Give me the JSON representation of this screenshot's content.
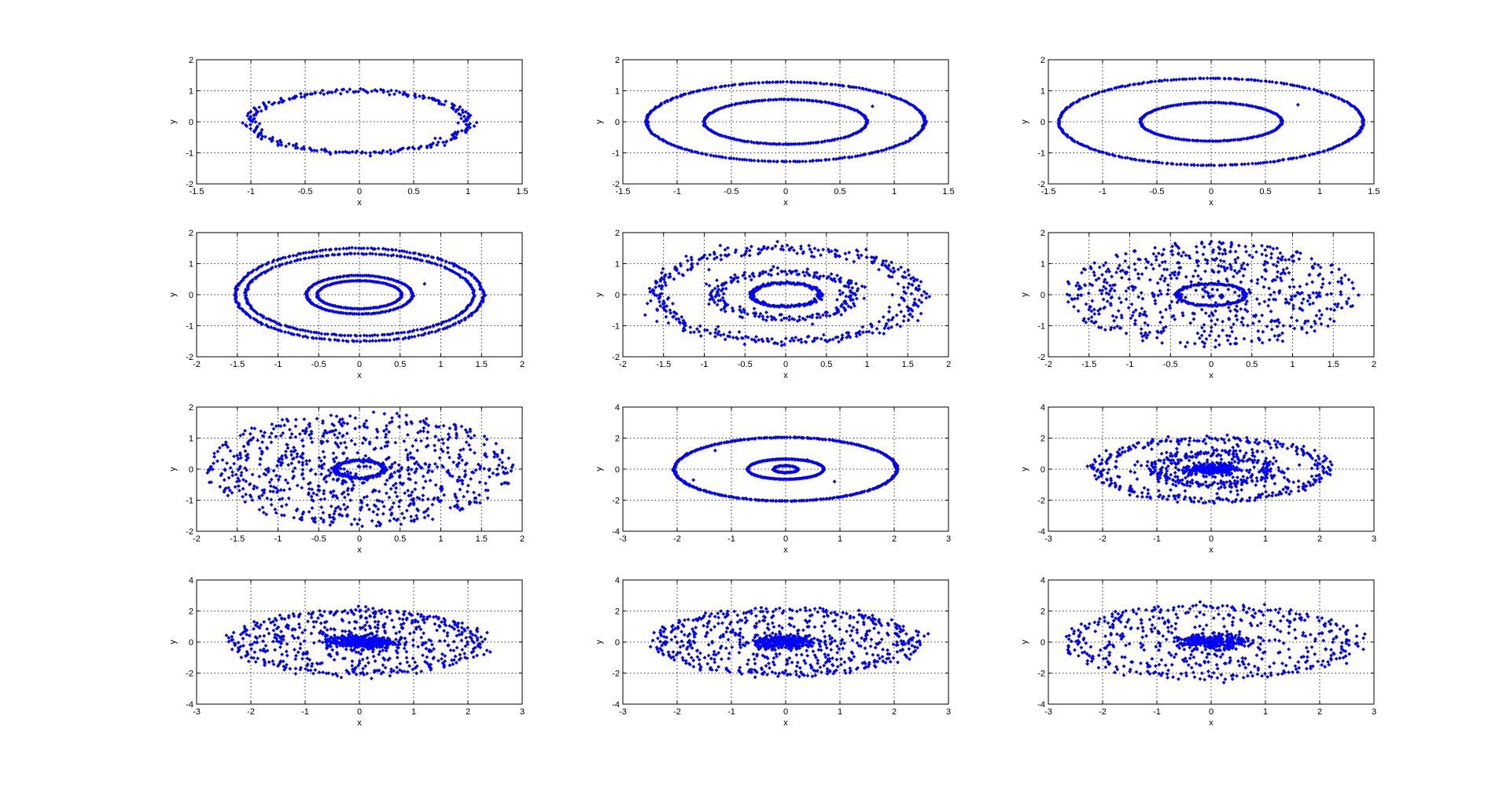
{
  "chart_data": [
    {
      "type": "scatter",
      "xlabel": "x",
      "ylabel": "y",
      "xlim": [
        -1.5,
        1.5
      ],
      "ylim": [
        -2,
        2
      ],
      "xticks": [
        "-1.5",
        "-1",
        "-0.5",
        "0",
        "0.5",
        "1",
        "1.5"
      ],
      "yticks": [
        "-2",
        "-1",
        "0",
        "1",
        "2"
      ],
      "grid": true,
      "series": [
        {
          "color": "#0000ff",
          "rings": [
            [
              1.0,
              1.0,
              260,
              0.035
            ]
          ],
          "core": 0,
          "scatter": 0,
          "outliers": []
        }
      ]
    },
    {
      "type": "scatter",
      "xlabel": "x",
      "ylabel": "y",
      "xlim": [
        -1.5,
        1.5
      ],
      "ylim": [
        -2,
        2
      ],
      "xticks": [
        "-1.5",
        "-1",
        "-0.5",
        "0",
        "0.5",
        "1",
        "1.5"
      ],
      "yticks": [
        "-2",
        "-1",
        "0",
        "1",
        "2"
      ],
      "grid": true,
      "series": [
        {
          "color": "#0000ff",
          "rings": [
            [
              1.28,
              1.28,
              320,
              0.004
            ],
            [
              0.75,
              0.72,
              260,
              0.006
            ]
          ],
          "core": 0,
          "scatter": 0,
          "outliers": [
            [
              0.8,
              0.5
            ]
          ]
        }
      ]
    },
    {
      "type": "scatter",
      "xlabel": "x",
      "ylabel": "y",
      "xlim": [
        -1.5,
        1.5
      ],
      "ylim": [
        -2,
        2
      ],
      "xticks": [
        "-1.5",
        "-1",
        "-0.5",
        "0",
        "0.5",
        "1",
        "1.5"
      ],
      "yticks": [
        "-2",
        "-1",
        "0",
        "1",
        "2"
      ],
      "grid": true,
      "series": [
        {
          "color": "#0000ff",
          "rings": [
            [
              1.4,
              1.4,
              340,
              0.004
            ],
            [
              0.65,
              0.62,
              240,
              0.006
            ]
          ],
          "core": 0,
          "scatter": 0,
          "outliers": [
            [
              0.8,
              0.55
            ]
          ]
        }
      ]
    },
    {
      "type": "scatter",
      "xlabel": "x",
      "ylabel": "y",
      "xlim": [
        -2,
        2
      ],
      "ylim": [
        -2,
        2
      ],
      "xticks": [
        "-2",
        "-1.5",
        "-1",
        "-0.5",
        "0",
        "0.5",
        "1",
        "1.5",
        "2"
      ],
      "yticks": [
        "-2",
        "-1",
        "0",
        "1",
        "2"
      ],
      "grid": true,
      "series": [
        {
          "color": "#0000ff",
          "rings": [
            [
              1.52,
              1.5,
              260,
              0.006
            ],
            [
              1.4,
              1.32,
              240,
              0.006
            ],
            [
              0.65,
              0.62,
              180,
              0.008
            ],
            [
              0.52,
              0.45,
              160,
              0.008
            ]
          ],
          "core": 0,
          "scatter": 0,
          "outliers": [
            [
              0.8,
              0.35
            ]
          ]
        }
      ]
    },
    {
      "type": "scatter",
      "xlabel": "x",
      "ylabel": "y",
      "xlim": [
        -2,
        2
      ],
      "ylim": [
        -2,
        2
      ],
      "xticks": [
        "-2",
        "-1.5",
        "-1",
        "-0.5",
        "0",
        "0.5",
        "1",
        "1.5",
        "2"
      ],
      "yticks": [
        "-2",
        "-1",
        "0",
        "1",
        "2"
      ],
      "grid": true,
      "series": [
        {
          "color": "#0000ff",
          "rings": [
            [
              1.6,
              1.5,
              380,
              0.06
            ],
            [
              0.85,
              0.75,
              220,
              0.09
            ],
            [
              0.42,
              0.38,
              200,
              0.05
            ]
          ],
          "core": 0,
          "scatter": 0,
          "outliers": []
        }
      ]
    },
    {
      "type": "scatter",
      "xlabel": "x",
      "ylabel": "y",
      "xlim": [
        -2,
        2
      ],
      "ylim": [
        -2,
        2
      ],
      "xticks": [
        "-2",
        "-1.5",
        "-1",
        "-0.5",
        "0",
        "0.5",
        "1",
        "1.5",
        "2"
      ],
      "yticks": [
        "-2",
        "-1",
        "0",
        "1",
        "2"
      ],
      "grid": true,
      "series": [
        {
          "color": "#0000ff",
          "rings": [
            [
              0.42,
              0.35,
              150,
              0.03
            ]
          ],
          "core": 0,
          "scatter": 650,
          "scatter_ext": [
            1.82,
            1.72
          ],
          "outliers": []
        }
      ]
    },
    {
      "type": "scatter",
      "xlabel": "x",
      "ylabel": "y",
      "xlim": [
        -2,
        2
      ],
      "ylim": [
        -2,
        2
      ],
      "xticks": [
        "-2",
        "-1.5",
        "-1",
        "-0.5",
        "0",
        "0.5",
        "1",
        "1.5",
        "2"
      ],
      "yticks": [
        "-2",
        "-1",
        "0",
        "1",
        "2"
      ],
      "grid": true,
      "series": [
        {
          "color": "#0000ff",
          "rings": [
            [
              0.3,
              0.28,
              150,
              0.05
            ]
          ],
          "core": 0,
          "scatter": 820,
          "scatter_ext": [
            1.9,
            1.85
          ],
          "outliers": []
        }
      ]
    },
    {
      "type": "scatter",
      "xlabel": "x",
      "ylabel": "y",
      "xlim": [
        -3,
        3
      ],
      "ylim": [
        -4,
        4
      ],
      "xticks": [
        "-3",
        "-2",
        "-1",
        "0",
        "1",
        "2",
        "3"
      ],
      "yticks": [
        "-4",
        "-2",
        "0",
        "2",
        "4"
      ],
      "grid": true,
      "series": [
        {
          "color": "#0000ff",
          "rings": [
            [
              2.05,
              2.05,
              420,
              0.005
            ],
            [
              0.7,
              0.65,
              200,
              0.008
            ],
            [
              0.22,
              0.22,
              70,
              0.05
            ]
          ],
          "core": 0,
          "scatter": 0,
          "outliers": [
            [
              -1.3,
              1.2
            ],
            [
              -1.7,
              -0.7
            ],
            [
              0.4,
              0.6
            ],
            [
              0.9,
              -0.8
            ]
          ]
        }
      ]
    },
    {
      "type": "scatter",
      "xlabel": "x",
      "ylabel": "y",
      "xlim": [
        -3,
        3
      ],
      "ylim": [
        -4,
        4
      ],
      "xticks": [
        "-3",
        "-2",
        "-1",
        "0",
        "1",
        "2",
        "3"
      ],
      "yticks": [
        "-4",
        "-2",
        "0",
        "2",
        "4"
      ],
      "grid": true,
      "series": [
        {
          "color": "#0000ff",
          "rings": [
            [
              2.1,
              2.0,
              260,
              0.05
            ],
            [
              1.0,
              1.0,
              200,
              0.12
            ]
          ],
          "core": 260,
          "core_ext": [
            0.5,
            0.5
          ],
          "scatter": 140,
          "scatter_ext": [
            2.0,
            1.9
          ],
          "outliers": []
        }
      ]
    },
    {
      "type": "scatter",
      "xlabel": "x",
      "ylabel": "y",
      "xlim": [
        -3,
        3
      ],
      "ylim": [
        -4,
        4
      ],
      "xticks": [
        "-3",
        "-2",
        "-1",
        "0",
        "1",
        "2",
        "3"
      ],
      "yticks": [
        "-4",
        "-2",
        "0",
        "2",
        "4"
      ],
      "grid": true,
      "series": [
        {
          "color": "#0000ff",
          "rings": [
            [
              2.25,
              2.05,
              220,
              0.05
            ]
          ],
          "core": 380,
          "core_ext": [
            0.6,
            0.55
          ],
          "scatter": 350,
          "scatter_ext": [
            2.15,
            2.0
          ],
          "outliers": []
        }
      ]
    },
    {
      "type": "scatter",
      "xlabel": "x",
      "ylabel": "y",
      "xlim": [
        -3,
        3
      ],
      "ylim": [
        -4,
        4
      ],
      "xticks": [
        "-3",
        "-2",
        "-1",
        "0",
        "1",
        "2",
        "3"
      ],
      "yticks": [
        "-4",
        "-2",
        "0",
        "2",
        "4"
      ],
      "grid": true,
      "series": [
        {
          "color": "#0000ff",
          "rings": [
            [
              2.4,
              2.1,
              200,
              0.05
            ]
          ],
          "core": 320,
          "core_ext": [
            0.55,
            0.5
          ],
          "scatter": 420,
          "scatter_ext": [
            2.3,
            2.1
          ],
          "outliers": []
        }
      ]
    },
    {
      "type": "scatter",
      "xlabel": "x",
      "ylabel": "y",
      "xlim": [
        -3,
        3
      ],
      "ylim": [
        -4,
        4
      ],
      "xticks": [
        "-3",
        "-2",
        "-1",
        "0",
        "1",
        "2",
        "3"
      ],
      "yticks": [
        "-4",
        "-2",
        "0",
        "2",
        "4"
      ],
      "grid": true,
      "series": [
        {
          "color": "#0000ff",
          "rings": [
            [
              2.6,
              2.3,
              200,
              0.05
            ]
          ],
          "core": 280,
          "core_ext": [
            0.6,
            0.55
          ],
          "scatter": 320,
          "scatter_ext": [
            2.5,
            2.3
          ],
          "outliers": []
        }
      ]
    }
  ]
}
